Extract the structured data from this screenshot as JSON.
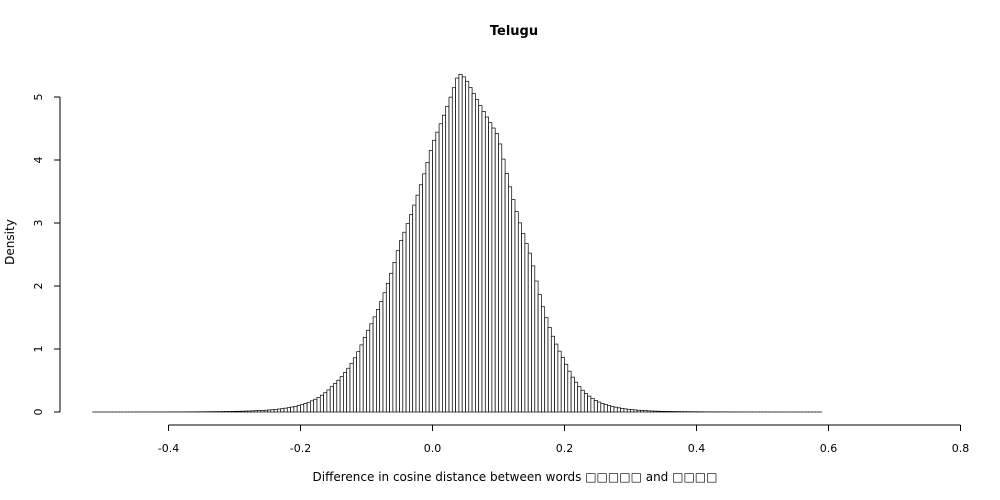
{
  "chart_data": {
    "type": "bar",
    "title": "Telugu",
    "xlabel": "Difference in cosine distance between words □□□□□ and □□□□",
    "ylabel": "Density",
    "xlim": [
      -0.52,
      0.77
    ],
    "ylim": [
      0,
      5.4
    ],
    "xticks": [
      -0.4,
      -0.2,
      0.0,
      0.2,
      0.4,
      0.6,
      0.8
    ],
    "xtick_labels": [
      "-0.4",
      "-0.2",
      "0.0",
      "0.2",
      "0.4",
      "0.6",
      "0.8"
    ],
    "yticks": [
      0,
      1,
      2,
      3,
      4,
      5
    ],
    "ytick_labels": [
      "0",
      "1",
      "2",
      "3",
      "4",
      "5"
    ],
    "bin_width": 0.005,
    "bins_start": -0.515,
    "bins_end": 0.765,
    "distribution_shape": "approximately normal, peak near x = 0.04",
    "bars": [
      {
        "x": -0.3,
        "y": 0.01
      },
      {
        "x": -0.25,
        "y": 0.03
      },
      {
        "x": -0.2,
        "y": 0.11
      },
      {
        "x": -0.15,
        "y": 0.43
      },
      {
        "x": -0.1,
        "y": 1.25
      },
      {
        "x": -0.05,
        "y": 2.66
      },
      {
        "x": 0.0,
        "y": 4.25
      },
      {
        "x": 0.04,
        "y": 5.38
      },
      {
        "x": 0.05,
        "y": 5.3
      },
      {
        "x": 0.1,
        "y": 4.38
      },
      {
        "x": 0.15,
        "y": 2.45
      },
      {
        "x": 0.2,
        "y": 0.82
      },
      {
        "x": 0.25,
        "y": 0.17
      },
      {
        "x": 0.3,
        "y": 0.04
      },
      {
        "x": 0.35,
        "y": 0.01
      }
    ],
    "grid": false
  }
}
